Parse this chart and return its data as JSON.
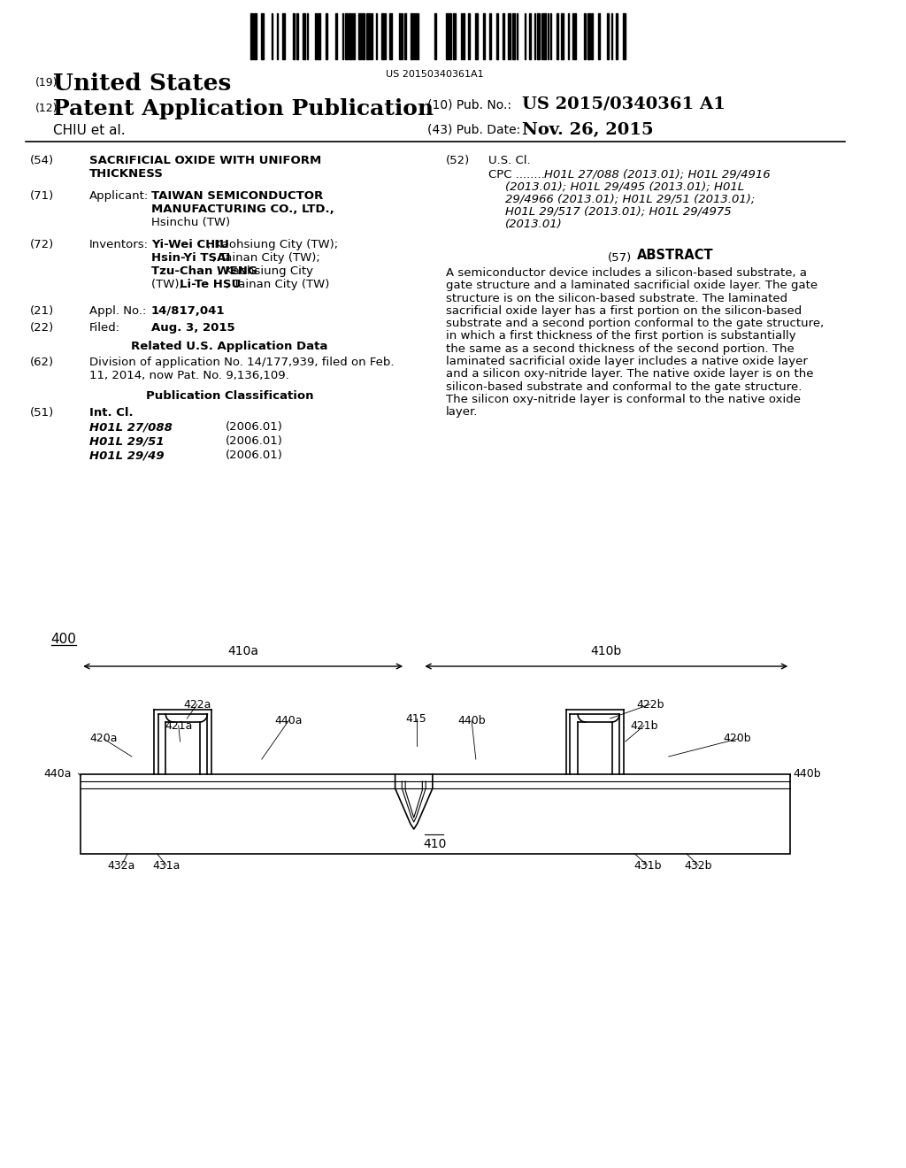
{
  "bg_color": "#ffffff",
  "barcode_text": "US 20150340361A1",
  "header_19": "(19)",
  "header_19_text": "United States",
  "header_12": "(12)",
  "header_12_text": "Patent Application Publication",
  "header_10_label": "(10) Pub. No.:",
  "header_10_value": "US 2015/0340361 A1",
  "header_chiu": "CHIU et al.",
  "header_43_label": "(43) Pub. Date:",
  "header_43_value": "Nov. 26, 2015",
  "field_54_label": "(54)",
  "field_71_label": "(71)",
  "field_71_applicant_label": "Applicant:",
  "field_72_label": "(72)",
  "field_72_inventors_label": "Inventors:",
  "field_21_label": "(21)",
  "field_21_text_label": "Appl. No.:",
  "field_21_value": "14/817,041",
  "field_22_label": "(22)",
  "field_22_text_label": "Filed:",
  "field_22_value": "Aug. 3, 2015",
  "related_header": "Related U.S. Application Data",
  "field_62_label": "(62)",
  "field_62_line1": "Division of application No. 14/177,939, filed on Feb.",
  "field_62_line2": "11, 2014, now Pat. No. 9,136,109.",
  "pub_class_header": "Publication Classification",
  "field_51_label": "(51)",
  "field_51_header": "Int. Cl.",
  "field_51_entries": [
    [
      "H01L 27/088",
      "(2006.01)"
    ],
    [
      "H01L 29/51",
      "(2006.01)"
    ],
    [
      "H01L 29/49",
      "(2006.01)"
    ]
  ],
  "field_52_label": "(52)",
  "field_52_header": "U.S. Cl.",
  "field_52_cpc_label": "CPC",
  "field_52_cpc_entries": [
    "H01L 27/088 (2013.01); H01L 29/4916",
    "(2013.01); H01L 29/495 (2013.01); H01L",
    "29/4966 (2013.01); H01L 29/51 (2013.01);",
    "H01L 29/517 (2013.01); H01L 29/4975",
    "(2013.01)"
  ],
  "field_57_label": "(57)",
  "field_57_header": "ABSTRACT",
  "abstract_lines": [
    "A semiconductor device includes a silicon-based substrate, a",
    "gate structure and a laminated sacrificial oxide layer. The gate",
    "structure is on the silicon-based substrate. The laminated",
    "sacrificial oxide layer has a first portion on the silicon-based",
    "substrate and a second portion conformal to the gate structure,",
    "in which a first thickness of the first portion is substantially",
    "the same as a second thickness of the second portion. The",
    "laminated sacrificial oxide layer includes a native oxide layer",
    "and a silicon oxy-nitride layer. The native oxide layer is on the",
    "silicon-based substrate and conformal to the gate structure.",
    "The silicon oxy-nitride layer is conformal to the native oxide",
    "layer."
  ],
  "diagram_label": "400"
}
